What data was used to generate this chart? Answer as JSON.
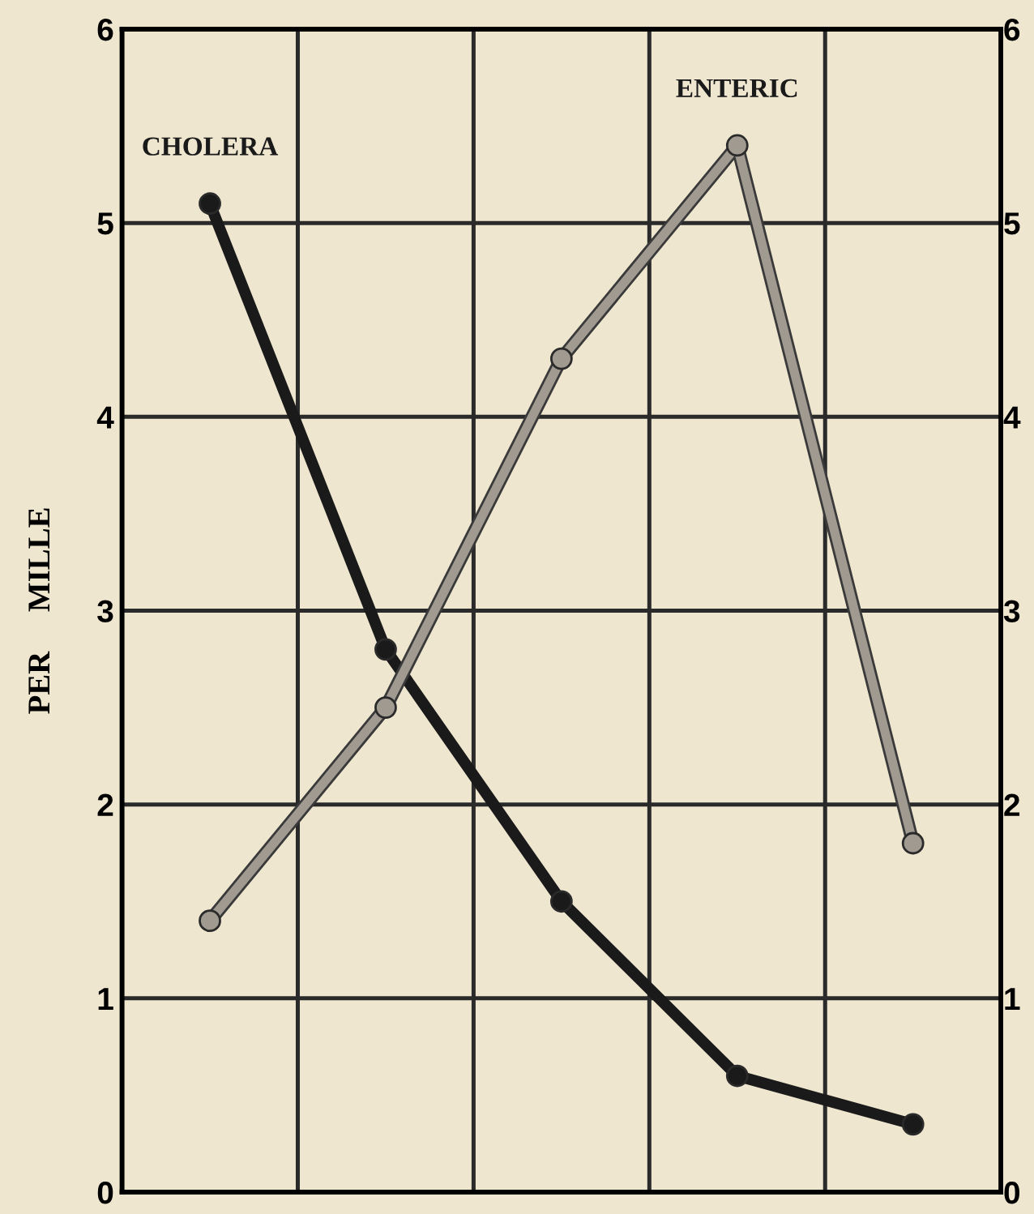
{
  "chart_data": {
    "type": "line",
    "ylabel": "PER     MILLE",
    "categories": [
      null,
      null,
      null,
      null,
      null
    ],
    "series": [
      {
        "name": "CHOLERA",
        "color": "#1a1a1a",
        "values": [
          5.1,
          2.8,
          1.5,
          0.6,
          0.35
        ]
      },
      {
        "name": "ENTERIC",
        "color": "#a09a90",
        "values": [
          1.4,
          2.5,
          4.3,
          5.4,
          1.8
        ]
      }
    ],
    "ylim": [
      0,
      6
    ],
    "yticks": [
      0,
      1,
      2,
      3,
      4,
      5,
      6
    ],
    "y2lim": [
      0,
      6
    ],
    "y2ticks": [
      0,
      1,
      2,
      3,
      4,
      5,
      6
    ],
    "grid": true,
    "marker": "circle",
    "line_style": "solid",
    "legend": false
  }
}
